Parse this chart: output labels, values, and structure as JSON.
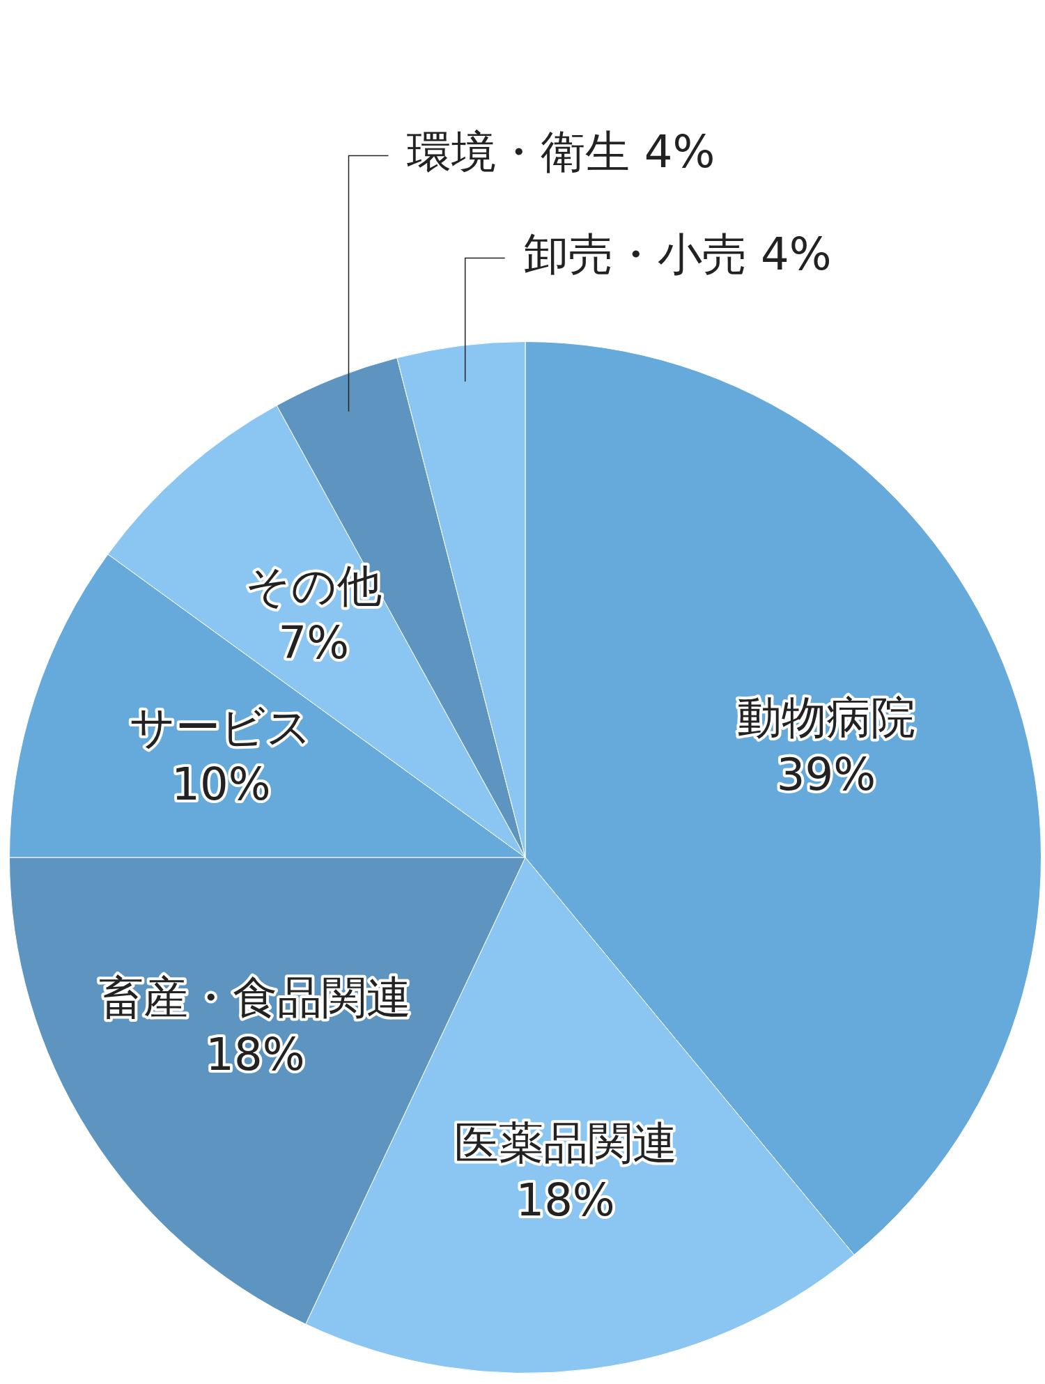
{
  "chart_data": {
    "type": "pie",
    "categories": [
      "動物病院",
      "医薬品関連",
      "畜産・食品関連",
      "サービス",
      "その他",
      "環境・衛生",
      "卸売・小売"
    ],
    "values": [
      39,
      18,
      18,
      10,
      7,
      4,
      4
    ],
    "value_labels": [
      "39%",
      "18%",
      "18%",
      "10%",
      "7%",
      "4%",
      "4%"
    ],
    "colors": [
      "#66aadc",
      "#8bc6f2",
      "#5d94c0",
      "#66aadc",
      "#8bc6f2",
      "#5d94c0",
      "#8bc6f2"
    ],
    "legend": false
  }
}
